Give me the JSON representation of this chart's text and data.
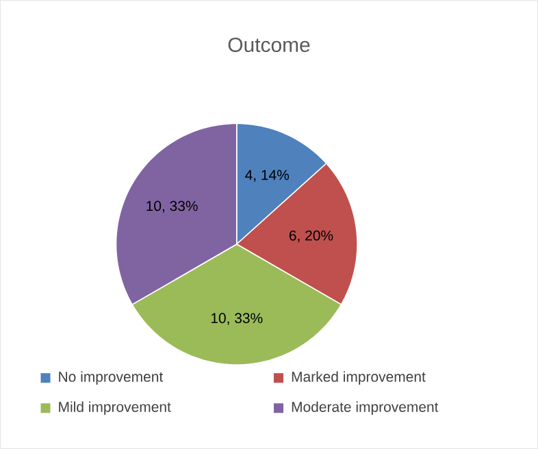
{
  "chart_data": {
    "type": "pie",
    "title": "Outcome",
    "categories": [
      "No improvement",
      "Marked improvement",
      "Mild improvement",
      "Moderate improvement"
    ],
    "values": [
      4,
      6,
      10,
      10
    ],
    "value_labels": [
      "4, 14%",
      "6, 20%",
      "10, 33%",
      "10, 33%"
    ],
    "colors": [
      "#4f81bd",
      "#c0504d",
      "#9bbb59",
      "#8064a2"
    ],
    "legend": "bottom"
  }
}
